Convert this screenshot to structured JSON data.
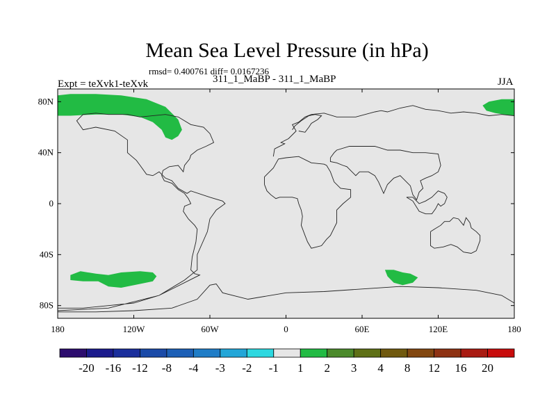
{
  "title": "Mean Sea Level Pressure (in hPa)",
  "stats": "rmsd= 0.400761 diff= 0.0167236",
  "expt": "Expt = teXvk1-teXvk",
  "runs": "311_1_MaBP - 311_1_MaBP",
  "season": "JJA",
  "chart_data": {
    "type": "heatmap",
    "title": "Mean Sea Level Pressure (in hPa)",
    "projection": "cylindrical equidistant",
    "xlim": [
      -180,
      180
    ],
    "ylim": [
      -90,
      90
    ],
    "x_ticks": [
      {
        "value": -180,
        "label": "180"
      },
      {
        "value": -120,
        "label": "120W"
      },
      {
        "value": -60,
        "label": "60W"
      },
      {
        "value": 0,
        "label": "0"
      },
      {
        "value": 60,
        "label": "60E"
      },
      {
        "value": 120,
        "label": "120E"
      },
      {
        "value": 180,
        "label": "180"
      }
    ],
    "y_ticks": [
      {
        "value": 80,
        "label": "80N"
      },
      {
        "value": 40,
        "label": "40N"
      },
      {
        "value": 0,
        "label": "0"
      },
      {
        "value": -40,
        "label": "40S"
      },
      {
        "value": -80,
        "label": "80S"
      }
    ],
    "colorbar": {
      "colors": [
        "#2c0c6e",
        "#1b1a8c",
        "#1a2e9c",
        "#1a4aa8",
        "#1c5fb6",
        "#1f7dc7",
        "#22a6d8",
        "#2dd8e0",
        "#e6e6e6",
        "#22bb44",
        "#4b8a2b",
        "#5e7016",
        "#70590e",
        "#824710",
        "#8e3213",
        "#a91b12",
        "#c80c0c"
      ],
      "labels": [
        "-20",
        "-16",
        "-12",
        "-8",
        "-4",
        "-3",
        "-2",
        "-1",
        "1",
        "2",
        "3",
        "4",
        "8",
        "12",
        "16",
        "20"
      ]
    },
    "background_color": "#e6e6e6",
    "anomaly_regions": [
      {
        "name": "north-pacific-arctic",
        "category": "1 to 2",
        "color": "#22bb44",
        "lonlat": [
          [
            -180,
            85
          ],
          [
            -170,
            86
          ],
          [
            -150,
            86
          ],
          [
            -130,
            85
          ],
          [
            -110,
            82
          ],
          [
            -95,
            76
          ],
          [
            -85,
            66
          ],
          [
            -82,
            58
          ],
          [
            -85,
            53
          ],
          [
            -90,
            50
          ],
          [
            -95,
            52
          ],
          [
            -98,
            58
          ],
          [
            -105,
            64
          ],
          [
            -115,
            68
          ],
          [
            -130,
            70
          ],
          [
            -150,
            70
          ],
          [
            -170,
            69
          ],
          [
            -180,
            69
          ]
        ]
      },
      {
        "name": "east-siberian-arctic",
        "category": "1 to 2",
        "color": "#22bb44",
        "lonlat": [
          [
            155,
            77
          ],
          [
            160,
            80
          ],
          [
            170,
            82
          ],
          [
            180,
            82
          ],
          [
            180,
            69
          ],
          [
            172,
            70
          ],
          [
            165,
            71
          ],
          [
            158,
            73
          ]
        ]
      },
      {
        "name": "south-pacific",
        "category": "1 to 2",
        "color": "#22bb44",
        "lonlat": [
          [
            -170,
            -56
          ],
          [
            -162,
            -53
          ],
          [
            -150,
            -55
          ],
          [
            -140,
            -56
          ],
          [
            -130,
            -54
          ],
          [
            -115,
            -53
          ],
          [
            -105,
            -54
          ],
          [
            -102,
            -57
          ],
          [
            -105,
            -61
          ],
          [
            -115,
            -63
          ],
          [
            -130,
            -66
          ],
          [
            -140,
            -65
          ],
          [
            -148,
            -61
          ],
          [
            -160,
            -61
          ],
          [
            -170,
            -60
          ]
        ]
      },
      {
        "name": "indian-ocean-south",
        "category": "1 to 2",
        "color": "#22bb44",
        "lonlat": [
          [
            78,
            -52
          ],
          [
            85,
            -52
          ],
          [
            92,
            -54
          ],
          [
            98,
            -55
          ],
          [
            104,
            -58
          ],
          [
            100,
            -62
          ],
          [
            92,
            -64
          ],
          [
            85,
            -62
          ],
          [
            80,
            -57
          ]
        ]
      }
    ],
    "coastlines": [
      {
        "name": "americas",
        "lonlat": [
          [
            -180,
            -82
          ],
          [
            -160,
            -82
          ],
          [
            -140,
            -80
          ],
          [
            -120,
            -78
          ],
          [
            -100,
            -72
          ],
          [
            -80,
            -60
          ],
          [
            -70,
            -52
          ],
          [
            -70,
            -40
          ],
          [
            -62,
            -22
          ],
          [
            -60,
            -12
          ],
          [
            -55,
            -5
          ],
          [
            -48,
            0
          ],
          [
            -50,
            2
          ],
          [
            -60,
            5
          ],
          [
            -75,
            10
          ],
          [
            -78,
            8
          ],
          [
            -85,
            12
          ],
          [
            -90,
            18
          ],
          [
            -95,
            20
          ],
          [
            -100,
            25
          ],
          [
            -105,
            22
          ],
          [
            -110,
            23
          ],
          [
            -115,
            30
          ],
          [
            -118,
            34
          ],
          [
            -125,
            40
          ],
          [
            -125,
            50
          ],
          [
            -135,
            57
          ],
          [
            -150,
            60
          ],
          [
            -160,
            58
          ],
          [
            -165,
            65
          ],
          [
            -160,
            70
          ],
          [
            -150,
            71
          ],
          [
            -140,
            70
          ],
          [
            -125,
            70
          ],
          [
            -115,
            68
          ],
          [
            -95,
            70
          ],
          [
            -85,
            68
          ],
          [
            -75,
            62
          ],
          [
            -65,
            60
          ],
          [
            -60,
            55
          ],
          [
            -57,
            48
          ],
          [
            -63,
            45
          ],
          [
            -70,
            42
          ],
          [
            -75,
            38
          ],
          [
            -76,
            35
          ],
          [
            -80,
            30
          ],
          [
            -81,
            25
          ],
          [
            -85,
            30
          ],
          [
            -92,
            29
          ],
          [
            -97,
            26
          ],
          [
            -98,
            22
          ],
          [
            -96,
            18
          ],
          [
            -90,
            16
          ],
          [
            -85,
            11
          ],
          [
            -80,
            8
          ],
          [
            -77,
            4
          ],
          [
            -75,
            0
          ],
          [
            -80,
            -2
          ],
          [
            -81,
            -6
          ],
          [
            -77,
            -12
          ],
          [
            -72,
            -17
          ],
          [
            -70,
            -20
          ],
          [
            -71,
            -30
          ],
          [
            -74,
            -42
          ],
          [
            -75,
            -52
          ],
          [
            -72,
            -55
          ],
          [
            -68,
            -56
          ],
          [
            -100,
            -72
          ],
          [
            -140,
            -82
          ],
          [
            -180,
            -84
          ]
        ]
      },
      {
        "name": "africa",
        "lonlat": [
          [
            -17,
            15
          ],
          [
            -17,
            21
          ],
          [
            -10,
            28
          ],
          [
            -6,
            35
          ],
          [
            0,
            36
          ],
          [
            10,
            37
          ],
          [
            20,
            32
          ],
          [
            30,
            31
          ],
          [
            32,
            30
          ],
          [
            35,
            25
          ],
          [
            38,
            17
          ],
          [
            43,
            12
          ],
          [
            51,
            11
          ],
          [
            51,
            5
          ],
          [
            45,
            0
          ],
          [
            40,
            -5
          ],
          [
            40,
            -15
          ],
          [
            35,
            -25
          ],
          [
            32,
            -28
          ],
          [
            28,
            -33
          ],
          [
            20,
            -35
          ],
          [
            17,
            -30
          ],
          [
            15,
            -25
          ],
          [
            12,
            -17
          ],
          [
            13,
            -10
          ],
          [
            12,
            -5
          ],
          [
            10,
            0
          ],
          [
            9,
            4
          ],
          [
            5,
            5
          ],
          [
            0,
            5
          ],
          [
            -5,
            5
          ],
          [
            -8,
            4
          ],
          [
            -12,
            7
          ],
          [
            -15,
            10
          ],
          [
            -17,
            15
          ]
        ]
      },
      {
        "name": "eurasia",
        "lonlat": [
          [
            -10,
            37
          ],
          [
            -9,
            43
          ],
          [
            -1,
            47
          ],
          [
            -4,
            48
          ],
          [
            2,
            51
          ],
          [
            5,
            54
          ],
          [
            8,
            57
          ],
          [
            5,
            62
          ],
          [
            10,
            64
          ],
          [
            15,
            68
          ],
          [
            20,
            70
          ],
          [
            30,
            71
          ],
          [
            40,
            68
          ],
          [
            55,
            68
          ],
          [
            70,
            72
          ],
          [
            75,
            73
          ],
          [
            80,
            72
          ],
          [
            90,
            75
          ],
          [
            100,
            77
          ],
          [
            110,
            74
          ],
          [
            120,
            73
          ],
          [
            130,
            71
          ],
          [
            140,
            72
          ],
          [
            150,
            71
          ],
          [
            160,
            69
          ],
          [
            170,
            70
          ],
          [
            180,
            69
          ]
        ]
      },
      {
        "name": "asia-south",
        "lonlat": [
          [
            35,
            36
          ],
          [
            38,
            40
          ],
          [
            40,
            42
          ],
          [
            50,
            45
          ],
          [
            60,
            45
          ],
          [
            70,
            45
          ],
          [
            80,
            42
          ],
          [
            90,
            42
          ],
          [
            100,
            40
          ],
          [
            110,
            40
          ],
          [
            120,
            39
          ],
          [
            122,
            30
          ],
          [
            120,
            25
          ],
          [
            115,
            22
          ],
          [
            110,
            20
          ],
          [
            106,
            18
          ],
          [
            108,
            12
          ],
          [
            105,
            9
          ],
          [
            103,
            3
          ],
          [
            100,
            7
          ],
          [
            98,
            14
          ],
          [
            95,
            17
          ],
          [
            90,
            22
          ],
          [
            85,
            20
          ],
          [
            80,
            15
          ],
          [
            77,
            8
          ],
          [
            73,
            17
          ],
          [
            70,
            22
          ],
          [
            65,
            25
          ],
          [
            58,
            25
          ],
          [
            55,
            22
          ],
          [
            52,
            25
          ],
          [
            48,
            29
          ],
          [
            45,
            30
          ],
          [
            40,
            32
          ],
          [
            35,
            33
          ],
          [
            35,
            36
          ]
        ]
      },
      {
        "name": "scandinavia",
        "lonlat": [
          [
            5,
            58
          ],
          [
            7,
            61
          ],
          [
            12,
            65
          ],
          [
            18,
            69
          ],
          [
            23,
            70
          ],
          [
            28,
            69
          ],
          [
            25,
            66
          ],
          [
            20,
            63
          ],
          [
            18,
            60
          ],
          [
            15,
            56
          ],
          [
            10,
            57
          ]
        ]
      },
      {
        "name": "southeast-asian-islands",
        "lonlat": [
          [
            95,
            5
          ],
          [
            100,
            2
          ],
          [
            105,
            -6
          ],
          [
            110,
            -8
          ],
          [
            115,
            -8
          ],
          [
            118,
            -4
          ],
          [
            120,
            0
          ],
          [
            122,
            -2
          ],
          [
            125,
            0
          ],
          [
            127,
            5
          ],
          [
            125,
            8
          ],
          [
            120,
            10
          ],
          [
            115,
            5
          ],
          [
            110,
            2
          ],
          [
            105,
            0
          ],
          [
            100,
            5
          ],
          [
            95,
            5
          ]
        ]
      },
      {
        "name": "australia",
        "lonlat": [
          [
            114,
            -22
          ],
          [
            114,
            -33
          ],
          [
            117,
            -35
          ],
          [
            124,
            -34
          ],
          [
            130,
            -32
          ],
          [
            135,
            -34
          ],
          [
            140,
            -38
          ],
          [
            146,
            -39
          ],
          [
            150,
            -37
          ],
          [
            153,
            -29
          ],
          [
            153,
            -25
          ],
          [
            150,
            -22
          ],
          [
            146,
            -19
          ],
          [
            145,
            -15
          ],
          [
            142,
            -11
          ],
          [
            140,
            -17
          ],
          [
            136,
            -12
          ],
          [
            132,
            -11
          ],
          [
            129,
            -14
          ],
          [
            125,
            -14
          ],
          [
            122,
            -17
          ],
          [
            117,
            -20
          ],
          [
            114,
            -22
          ]
        ]
      },
      {
        "name": "antarctica",
        "lonlat": [
          [
            -180,
            -85
          ],
          [
            -150,
            -85
          ],
          [
            -120,
            -84
          ],
          [
            -90,
            -82
          ],
          [
            -70,
            -75
          ],
          [
            -60,
            -64
          ],
          [
            -55,
            -63
          ],
          [
            -50,
            -70
          ],
          [
            -30,
            -75
          ],
          [
            0,
            -70
          ],
          [
            30,
            -69
          ],
          [
            60,
            -67
          ],
          [
            90,
            -65
          ],
          [
            120,
            -66
          ],
          [
            150,
            -68
          ],
          [
            170,
            -72
          ],
          [
            180,
            -78
          ]
        ]
      }
    ]
  }
}
